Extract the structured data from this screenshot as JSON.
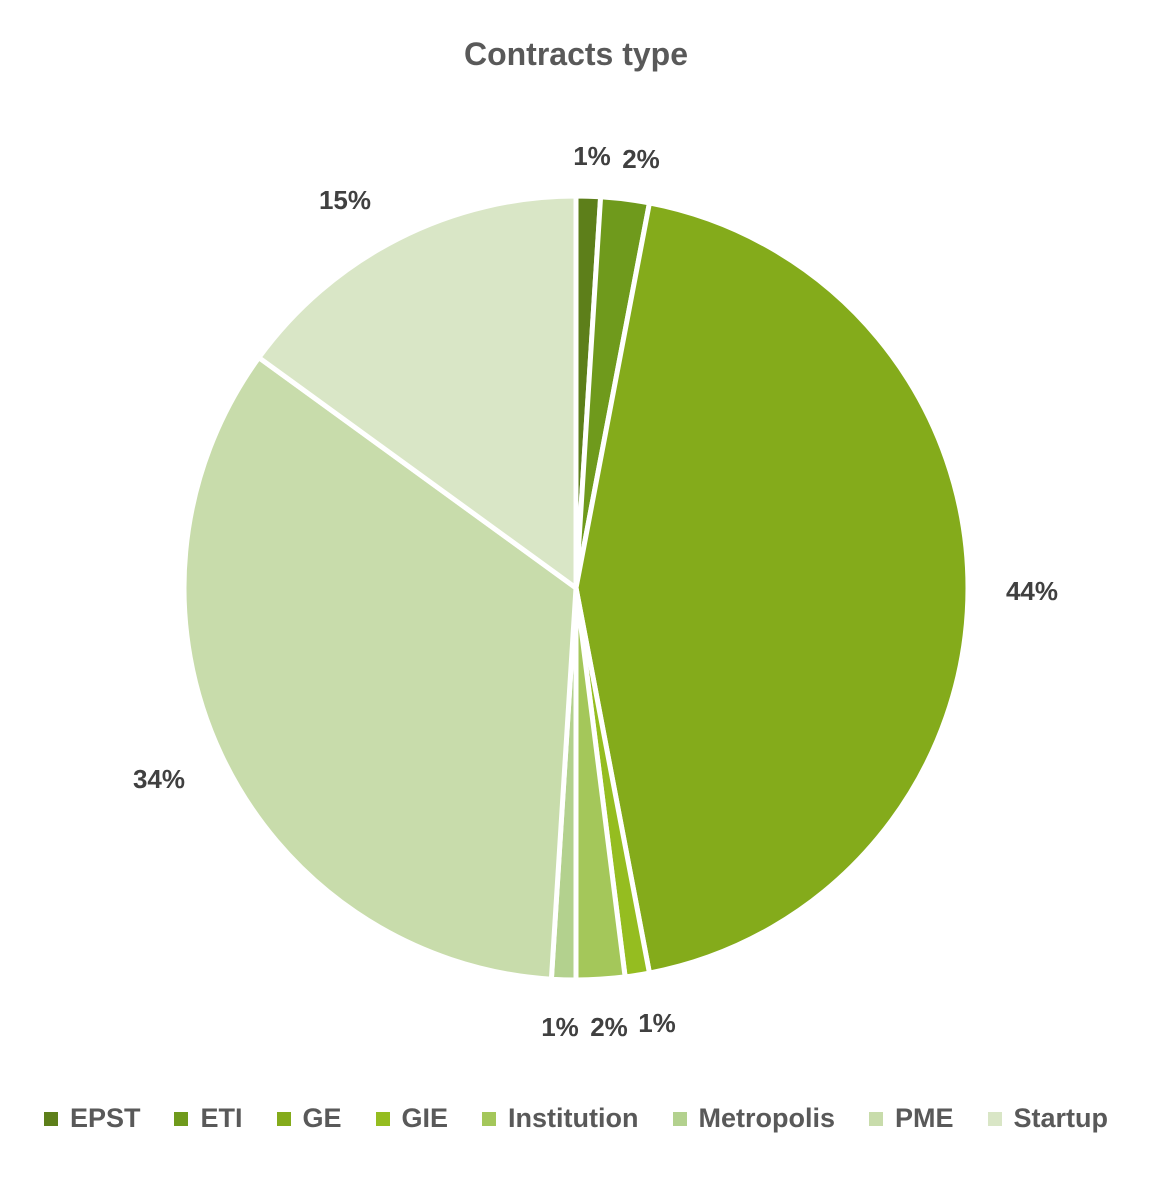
{
  "chart_data": {
    "type": "pie",
    "title": "Contracts type",
    "categories": [
      "EPST",
      "ETI",
      "GE",
      "GIE",
      "Institution",
      "Metropolis",
      "PME",
      "Startup"
    ],
    "values": [
      1,
      2,
      44,
      1,
      2,
      1,
      34,
      15
    ],
    "labels": [
      "1%",
      "2%",
      "44%",
      "1%",
      "2%",
      "1%",
      "34%",
      "15%"
    ],
    "colors": [
      "#5d7f1a",
      "#6f9a1c",
      "#84ab1b",
      "#95bd20",
      "#a4c75a",
      "#b3d18e",
      "#c8dcab",
      "#d9e6c6"
    ],
    "legend_position": "bottom"
  }
}
